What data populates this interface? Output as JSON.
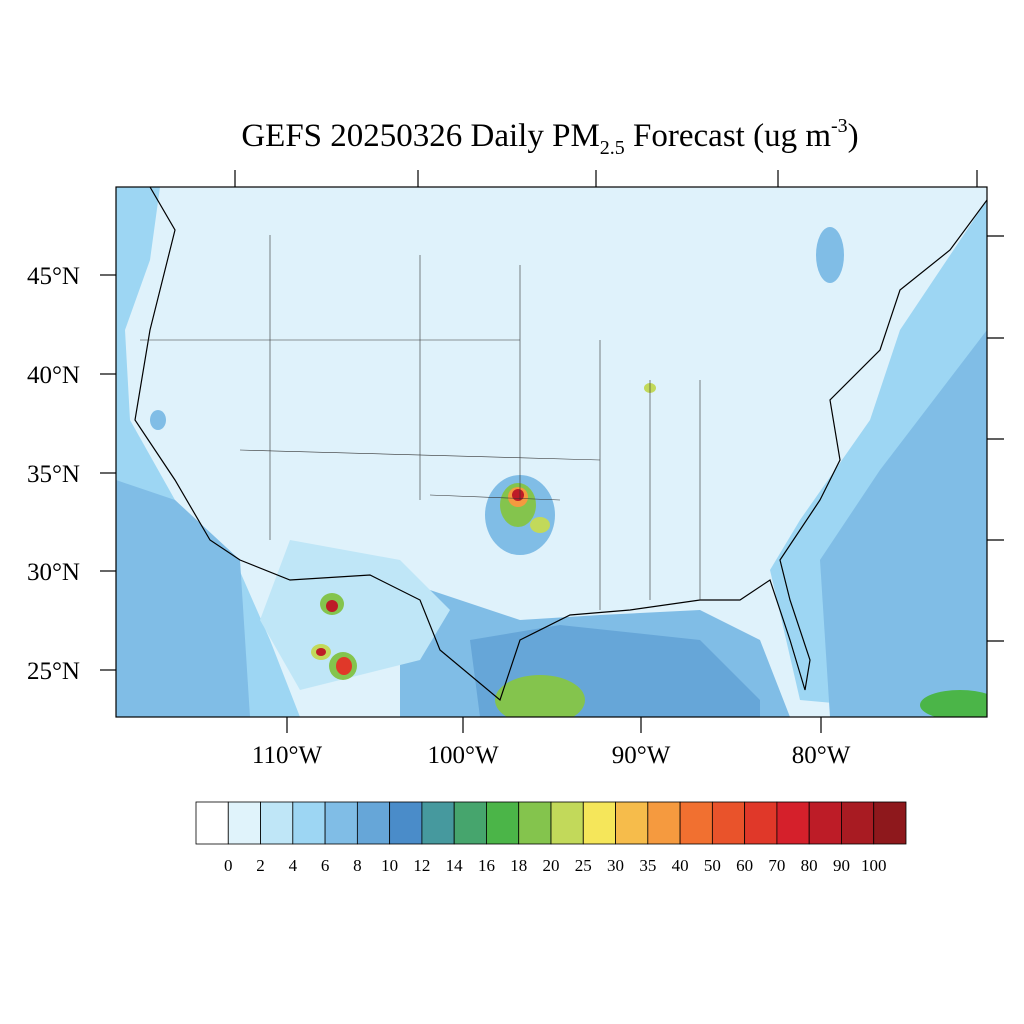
{
  "title": {
    "main": "GEFS 20250326 Daily PM",
    "sub": "2.5",
    "middle": " Forecast (ug m",
    "sup": "-3",
    "end": ")"
  },
  "map": {
    "lat_labels": [
      "45°N",
      "40°N",
      "35°N",
      "30°N",
      "25°N"
    ],
    "lon_labels": [
      "110°W",
      "100°W",
      "90°W",
      "80°W"
    ]
  },
  "colorbar": {
    "levels": [
      0,
      2,
      4,
      6,
      8,
      10,
      12,
      14,
      16,
      18,
      20,
      25,
      30,
      35,
      40,
      50,
      60,
      70,
      80,
      90,
      100
    ],
    "colors": [
      "#ffffff",
      "#e0f3fb",
      "#bfe6f7",
      "#9dd6f3",
      "#80bde6",
      "#66a6d8",
      "#4a8cc9",
      "#46999e",
      "#46a56d",
      "#4bb548",
      "#84c44d",
      "#c2d95a",
      "#f5e65a",
      "#f6bc4b",
      "#f59a3f",
      "#f17030",
      "#e9532b",
      "#e03829",
      "#d5202b",
      "#bd1c27",
      "#a81b22",
      "#8e181c"
    ]
  }
}
